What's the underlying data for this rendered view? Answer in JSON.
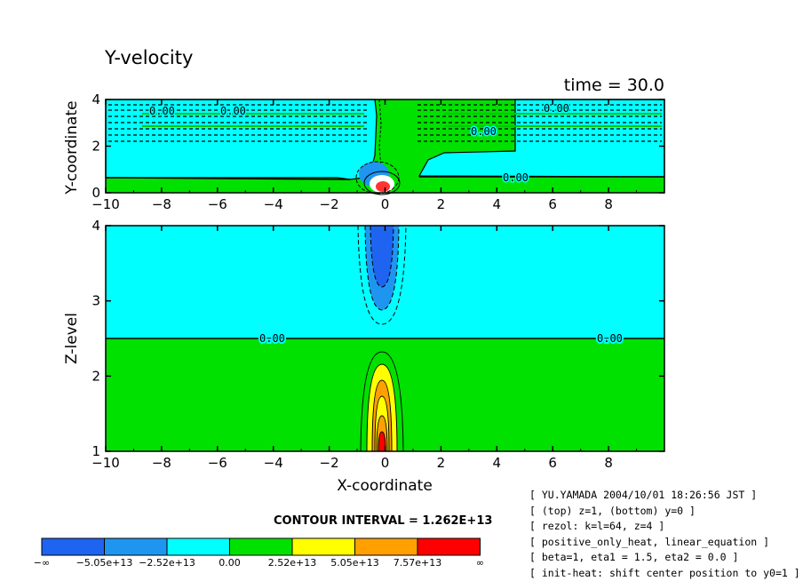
{
  "chart_data": [
    {
      "type": "heatmap",
      "title": "Y-velocity",
      "time_label": "time = 30.0",
      "xlabel": "",
      "ylabel": "Y-coordinate",
      "xlim": [
        -10,
        10
      ],
      "ylim": [
        0,
        4
      ],
      "xticks": [
        "-10",
        "-8",
        "-6",
        "-4",
        "-2",
        "0",
        "2",
        "4",
        "6",
        "8"
      ],
      "yticks": [
        "0",
        "2",
        "4"
      ],
      "contour_labels": [
        "0.00",
        "0.00",
        "0.00",
        "0.00",
        "0.00"
      ]
    },
    {
      "type": "heatmap",
      "xlabel": "X-coordinate",
      "ylabel": "Z-level",
      "xlim": [
        -10,
        10
      ],
      "ylim": [
        1,
        4
      ],
      "xticks": [
        "-10",
        "-8",
        "-6",
        "-4",
        "-2",
        "0",
        "2",
        "4",
        "6",
        "8"
      ],
      "yticks": [
        "1",
        "2",
        "3",
        "4"
      ],
      "contour_labels": [
        "0.00",
        "0.00"
      ]
    }
  ],
  "colorbar": {
    "contour_interval": "CONTOUR INTERVAL = 1.262E+13",
    "colors": [
      "#1e64f0",
      "#1e96f0",
      "#00ffff",
      "#00e100",
      "#ffff00",
      "#ffa000",
      "#ff0000"
    ],
    "labels": [
      "-∞",
      "-5.05e+13",
      "-2.52e+13",
      "0.00",
      "2.52e+13",
      "5.05e+13",
      "7.57e+13",
      "∞"
    ]
  },
  "info_lines": [
    "[ YU.YAMADA 2004/10/01 18:26:56 JST ]",
    "[ (top) z=1, (bottom) y=0 ]",
    "[ rezol: k=l=64, z=4 ]",
    "[ positive_only_heat, linear_equation ]",
    "[ beta=1, eta1 = 1.5, eta2 = 0.0 ]",
    "[ init-heat: shift center position to y0=1 ]"
  ]
}
